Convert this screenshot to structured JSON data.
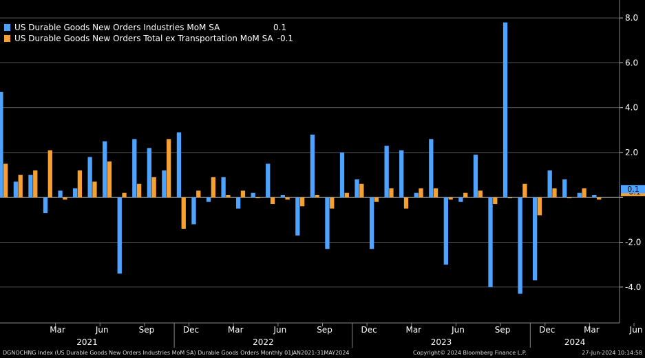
{
  "chart_data": {
    "type": "bar",
    "series": [
      {
        "name": "US Durable Goods New Orders Industries MoM SA",
        "last_value": "0.1",
        "color": "#4da3ff",
        "values": [
          4.7,
          0.7,
          1.0,
          -0.7,
          0.3,
          0.4,
          1.8,
          2.5,
          -3.4,
          2.6,
          2.2,
          1.2,
          2.9,
          -1.2,
          -0.2,
          0.9,
          -0.5,
          0.2,
          1.5,
          0.1,
          -1.7,
          2.8,
          -2.3,
          2.0,
          0.8,
          -2.3,
          2.3,
          2.1,
          0.2,
          2.6,
          -3.0,
          -0.2,
          1.9,
          -4.0,
          7.8,
          -4.3,
          -3.7,
          1.2,
          0.8,
          0.2,
          0.1
        ]
      },
      {
        "name": "US Durable Goods New Orders Total ex Transportation MoM SA",
        "last_value": "-0.1",
        "color": "#f5a030",
        "values": [
          1.5,
          1.0,
          1.2,
          2.1,
          -0.1,
          1.2,
          0.7,
          1.6,
          0.2,
          0.6,
          0.9,
          2.6,
          -1.4,
          0.3,
          0.9,
          0.1,
          0.3,
          0.0,
          -0.3,
          -0.1,
          -0.4,
          0.1,
          -0.5,
          0.2,
          0.6,
          -0.2,
          0.4,
          -0.5,
          0.4,
          0.4,
          -0.1,
          0.2,
          0.3,
          -0.3,
          0.0,
          0.6,
          -0.8,
          0.4,
          0.0,
          0.4,
          -0.1
        ]
      }
    ],
    "x_month_ticks": [
      "Mar",
      "Jun",
      "Sep",
      "Dec",
      "Mar",
      "Jun",
      "Sep",
      "Dec",
      "Mar",
      "Jun",
      "Sep",
      "Dec",
      "Mar",
      "Jun"
    ],
    "years": [
      "2021",
      "2022",
      "2023",
      "2024"
    ],
    "y_ticks": [
      "8.0",
      "6.0",
      "4.0",
      "2.0",
      "0.0",
      "-2.0",
      "-4.0"
    ],
    "ylim": [
      -5.6,
      8.8
    ],
    "grid": true,
    "legend_position": "top-left",
    "last_value_markers": [
      "0.1",
      "-0.1"
    ]
  },
  "footer": {
    "left": "DGNOCHNG Index (US Durable Goods New Orders Industries MoM SA) Durable Goods Orders  Monthly 01JAN2021-31MAY2024",
    "middle": "Copyright© 2024 Bloomberg Finance L.P.",
    "right": "27-Jun-2024 10:14:58"
  }
}
